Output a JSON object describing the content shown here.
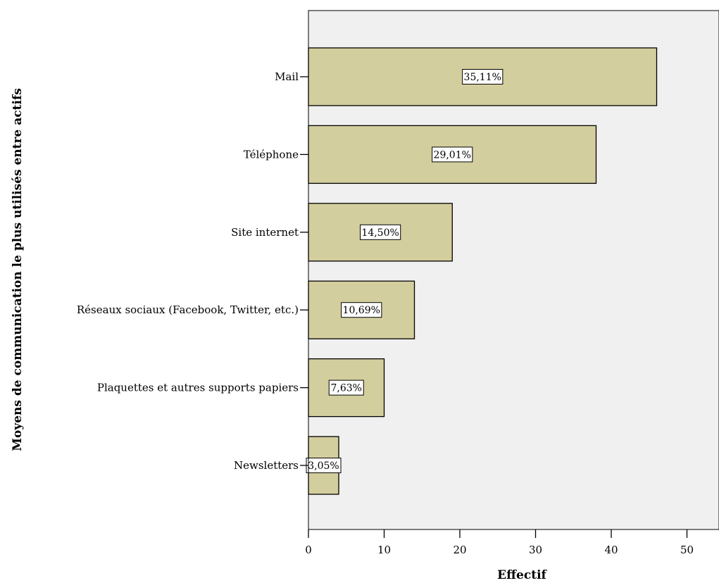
{
  "chart_data": {
    "type": "bar",
    "orientation": "horizontal",
    "xlabel": "Effectif",
    "ylabel": "Moyens de communication le plus utilisés entre actifs",
    "categories": [
      "Mail",
      "Téléphone",
      "Site internet",
      "Réseaux sociaux (Facebook, Twitter, etc.)",
      "Plaquettes et autres supports papiers",
      "Newsletters"
    ],
    "values": [
      46,
      38,
      19,
      14,
      10,
      4
    ],
    "percent_labels": [
      "35,11%",
      "29,01%",
      "14,50%",
      "10,69%",
      "7,63%",
      "3,05%"
    ],
    "xticks": [
      "0",
      "10",
      "20",
      "30",
      "40",
      "50"
    ],
    "xlim": [
      0,
      54
    ],
    "grid": false,
    "colors": {
      "bar_fill": "#d3ce9d",
      "bar_stroke": "#000000",
      "plot_background": "#f0f0f0"
    }
  }
}
